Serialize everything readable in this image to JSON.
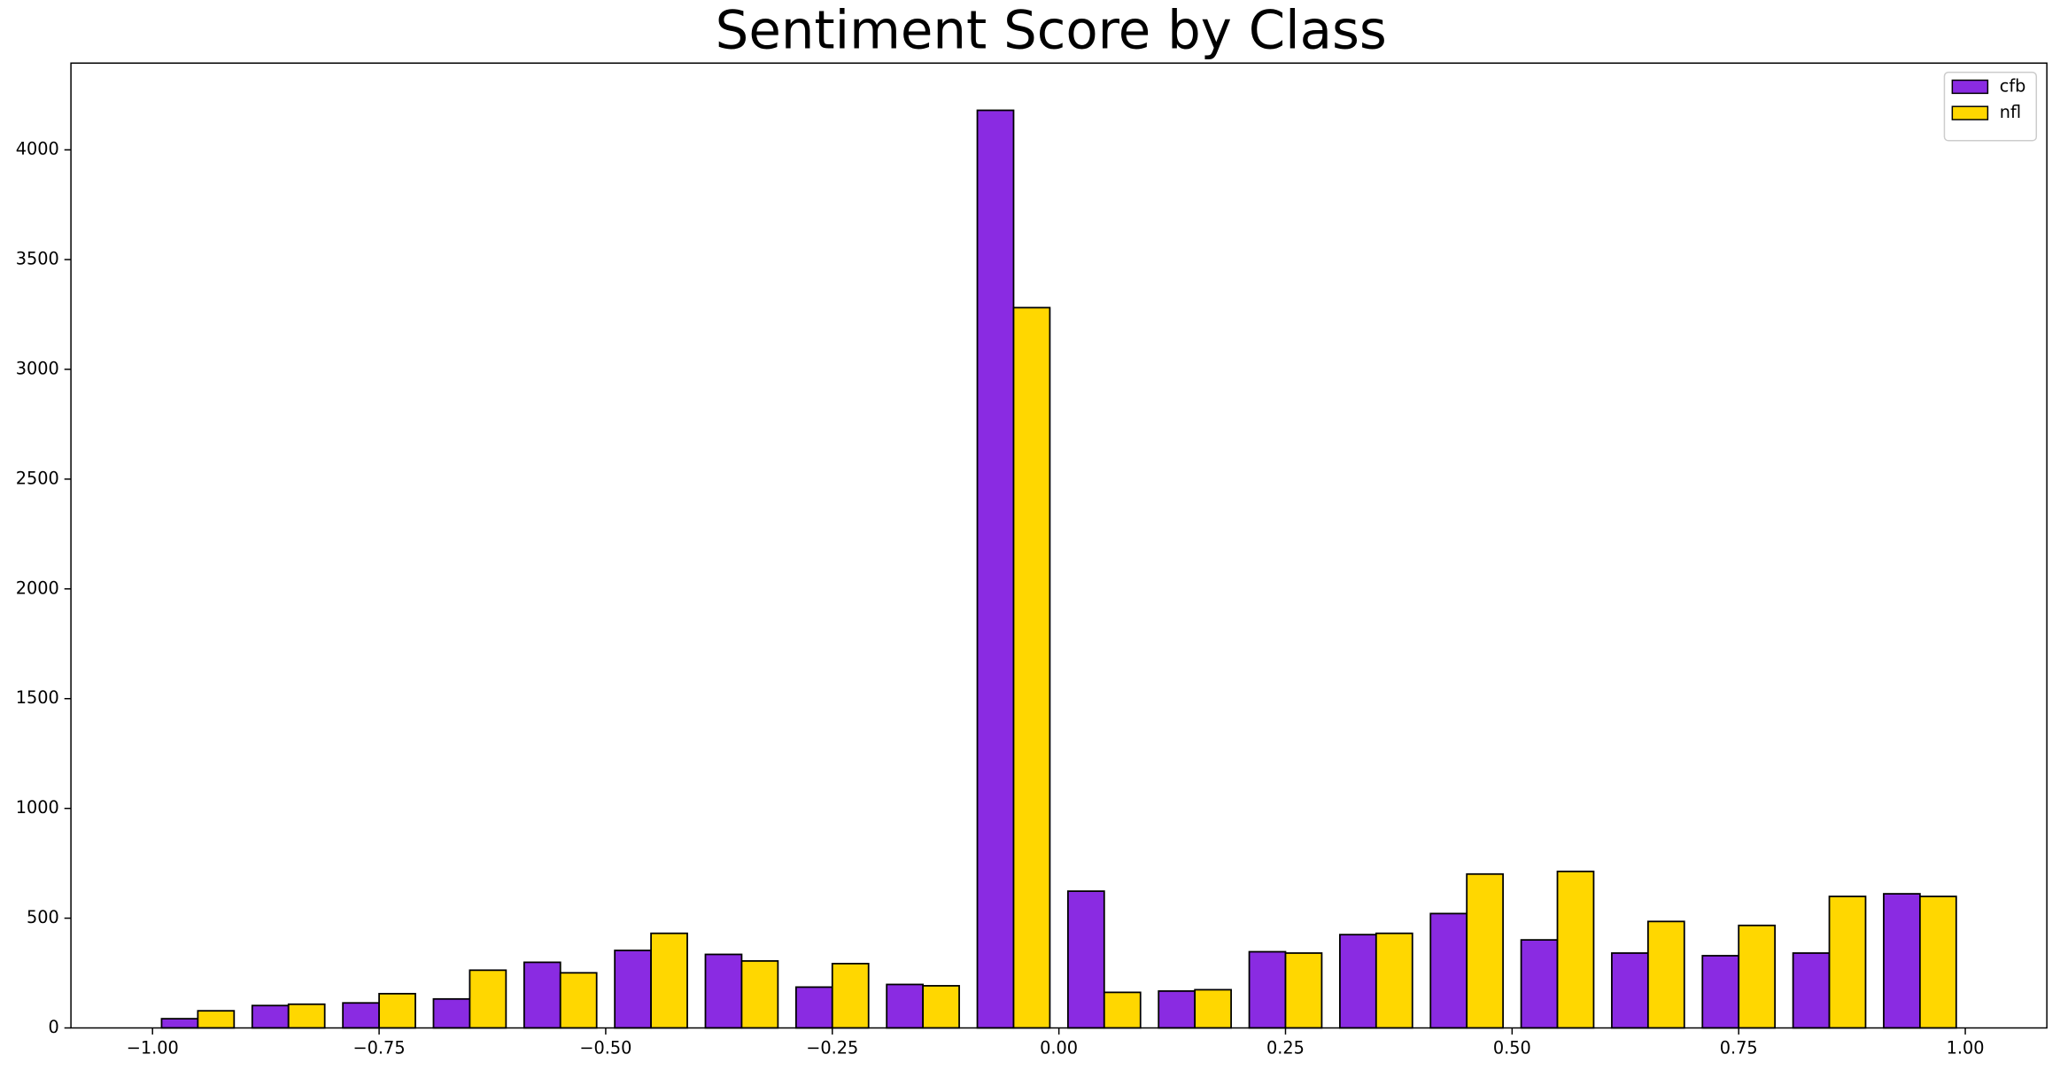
{
  "chart_data": {
    "type": "grouped-histogram",
    "title": "Sentiment Score by Class",
    "bins": [
      -1.0,
      -0.9,
      -0.8,
      -0.7,
      -0.6,
      -0.5,
      -0.4,
      -0.3,
      -0.2,
      -0.1,
      0.0,
      0.1,
      0.2,
      0.3,
      0.4,
      0.5,
      0.6,
      0.7,
      0.8,
      0.9,
      1.0
    ],
    "series": [
      {
        "name": "cfb",
        "color": "#8a2be2",
        "values": [
          42,
          102,
          114,
          132,
          299,
          353,
          335,
          186,
          198,
          4180,
          623,
          168,
          347,
          425,
          521,
          401,
          341,
          329,
          341,
          611
        ]
      },
      {
        "name": "nfl",
        "color": "#ffd700",
        "values": [
          78,
          108,
          156,
          263,
          251,
          431,
          305,
          293,
          192,
          3281,
          162,
          174,
          341,
          431,
          701,
          713,
          485,
          467,
          599,
          599
        ]
      }
    ],
    "xlim": [
      -1.09,
      1.09
    ],
    "ylim": [
      0,
      4395
    ],
    "xticks": [
      {
        "value": -1.0,
        "label": "−1.00"
      },
      {
        "value": -0.75,
        "label": "−0.75"
      },
      {
        "value": -0.5,
        "label": "−0.50"
      },
      {
        "value": -0.25,
        "label": "−0.25"
      },
      {
        "value": 0.0,
        "label": "0.00"
      },
      {
        "value": 0.25,
        "label": "0.25"
      },
      {
        "value": 0.5,
        "label": "0.50"
      },
      {
        "value": 0.75,
        "label": "0.75"
      },
      {
        "value": 1.0,
        "label": "1.00"
      }
    ],
    "yticks": [
      0,
      500,
      1000,
      1500,
      2000,
      2500,
      3000,
      3500,
      4000
    ],
    "legend": "upper right",
    "grid": false
  }
}
